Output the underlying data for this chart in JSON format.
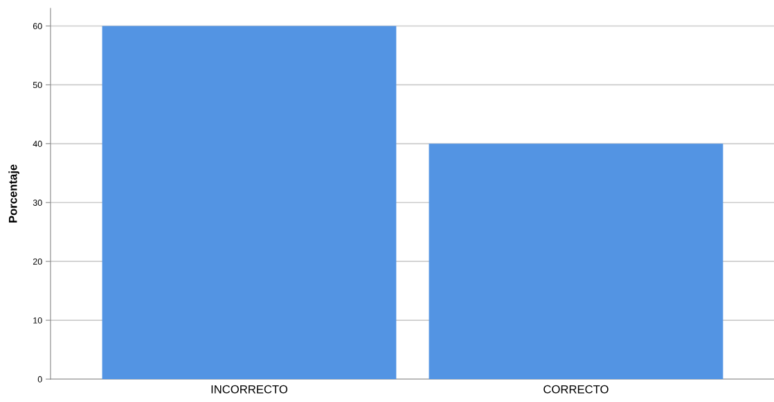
{
  "chart_data": {
    "type": "bar",
    "ylabel": "Porcentaje",
    "categories": [
      "INCORRECTO",
      "CORRECTO"
    ],
    "values": [
      60,
      40
    ],
    "color": "#5394e3",
    "ylim": [
      0,
      63
    ],
    "yticks": [
      0,
      10,
      20,
      30,
      40,
      50,
      60
    ],
    "grid": "y"
  }
}
